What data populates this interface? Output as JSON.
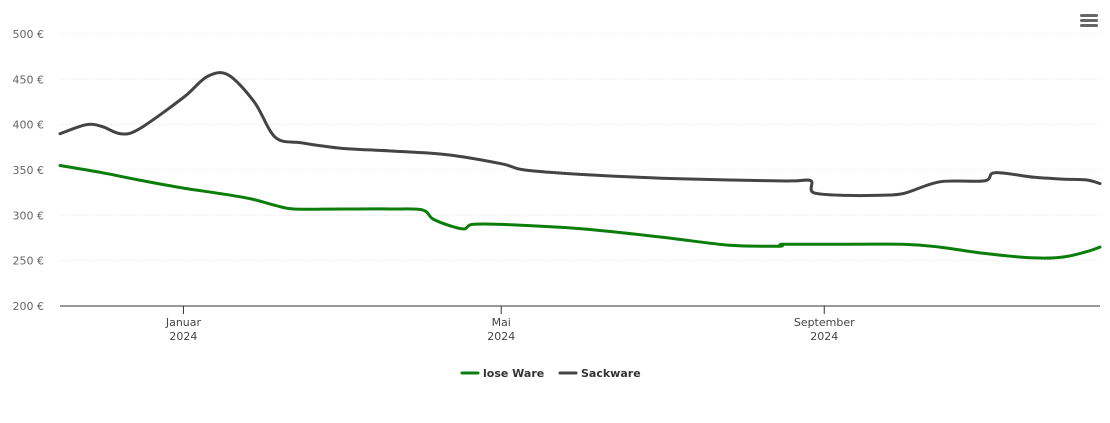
{
  "colors": {
    "lose_ware": "#0a7d0a",
    "sackware": "#444444",
    "grid": "#e6e6e6",
    "axis": "#333333"
  },
  "menu": {
    "icon": "hamburger-menu-icon"
  },
  "chart_data": {
    "type": "line",
    "title": "",
    "xlabel": "",
    "ylabel": "",
    "x_range": [
      "2023-11-15",
      "2024-12-15"
    ],
    "ylim": [
      200,
      500
    ],
    "y_ticks": [
      200,
      250,
      300,
      350,
      400,
      450,
      500
    ],
    "y_tick_labels": [
      "200 €",
      "250 €",
      "300 €",
      "350 €",
      "400 €",
      "450 €",
      "500 €"
    ],
    "x_ticks": [
      {
        "date": "2024-01-01",
        "label": "Januar",
        "year": "2024"
      },
      {
        "date": "2024-05-01",
        "label": "Mai",
        "year": "2024"
      },
      {
        "date": "2024-09-01",
        "label": "September",
        "year": "2024"
      }
    ],
    "grid": true,
    "legend_position": "bottom-center",
    "series": [
      {
        "name": "lose Ware",
        "points": [
          [
            "2023-11-15",
            355
          ],
          [
            "2023-12-01",
            347
          ],
          [
            "2023-12-15",
            339
          ],
          [
            "2024-01-01",
            330
          ],
          [
            "2024-01-15",
            324
          ],
          [
            "2024-01-27",
            318
          ],
          [
            "2024-02-05",
            311
          ],
          [
            "2024-02-12",
            307
          ],
          [
            "2024-03-01",
            307
          ],
          [
            "2024-03-20",
            307
          ],
          [
            "2024-04-01",
            306
          ],
          [
            "2024-04-05",
            296
          ],
          [
            "2024-04-12",
            288
          ],
          [
            "2024-04-17",
            285
          ],
          [
            "2024-04-20",
            290
          ],
          [
            "2024-05-01",
            290
          ],
          [
            "2024-06-01",
            285
          ],
          [
            "2024-07-01",
            276
          ],
          [
            "2024-07-27",
            267
          ],
          [
            "2024-08-15",
            266
          ],
          [
            "2024-08-16",
            268
          ],
          [
            "2024-09-01",
            268
          ],
          [
            "2024-10-01",
            268
          ],
          [
            "2024-10-15",
            265
          ],
          [
            "2024-11-01",
            258
          ],
          [
            "2024-11-20",
            253
          ],
          [
            "2024-12-01",
            254
          ],
          [
            "2024-12-10",
            260
          ],
          [
            "2024-12-15",
            265
          ]
        ]
      },
      {
        "name": "Sackware",
        "points": [
          [
            "2023-11-15",
            390
          ],
          [
            "2023-11-25",
            400
          ],
          [
            "2023-12-01",
            398
          ],
          [
            "2023-12-08",
            390
          ],
          [
            "2023-12-15",
            395
          ],
          [
            "2024-01-01",
            430
          ],
          [
            "2024-01-10",
            453
          ],
          [
            "2024-01-18",
            455
          ],
          [
            "2024-01-28",
            425
          ],
          [
            "2024-02-05",
            386
          ],
          [
            "2024-02-15",
            380
          ],
          [
            "2024-03-01",
            374
          ],
          [
            "2024-03-20",
            371
          ],
          [
            "2024-04-10",
            367
          ],
          [
            "2024-05-01",
            357
          ],
          [
            "2024-05-10",
            350
          ],
          [
            "2024-06-01",
            345
          ],
          [
            "2024-07-01",
            341
          ],
          [
            "2024-07-27",
            339
          ],
          [
            "2024-08-15",
            338
          ],
          [
            "2024-08-21",
            338
          ],
          [
            "2024-08-27",
            338
          ],
          [
            "2024-08-28",
            325
          ],
          [
            "2024-09-10",
            322
          ],
          [
            "2024-09-20",
            322
          ],
          [
            "2024-10-01",
            324
          ],
          [
            "2024-10-15",
            337
          ],
          [
            "2024-11-01",
            338
          ],
          [
            "2024-11-05",
            347
          ],
          [
            "2024-11-20",
            342
          ],
          [
            "2024-12-01",
            340
          ],
          [
            "2024-12-10",
            339
          ],
          [
            "2024-12-15",
            335
          ]
        ]
      }
    ]
  }
}
